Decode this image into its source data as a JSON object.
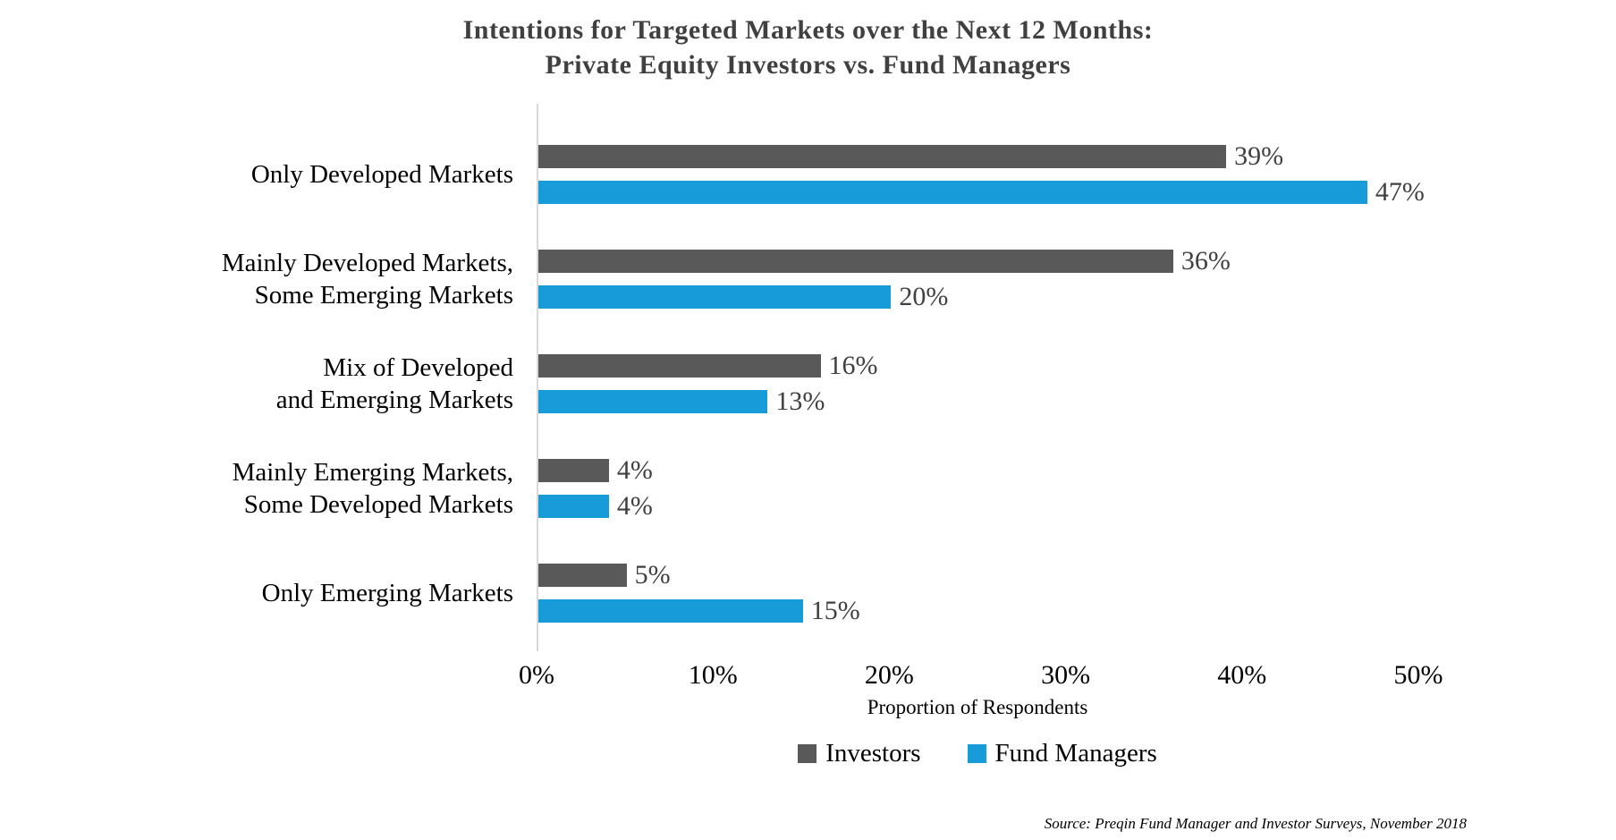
{
  "title": {
    "line1": "Intentions for Targeted Markets over the Next 12 Months:",
    "line2": "Private Equity Investors vs. Fund Managers"
  },
  "chart_data": {
    "type": "bar",
    "orientation": "horizontal",
    "categories": [
      {
        "lines": [
          "Only Developed Markets"
        ]
      },
      {
        "lines": [
          "Mainly Developed Markets,",
          "Some Emerging Markets"
        ]
      },
      {
        "lines": [
          "Mix of Developed",
          "and Emerging Markets"
        ]
      },
      {
        "lines": [
          "Mainly Emerging Markets,",
          "Some Developed Markets"
        ]
      },
      {
        "lines": [
          "Only Emerging Markets"
        ]
      }
    ],
    "series": [
      {
        "name": "Investors",
        "color": "#595959",
        "values": [
          39,
          36,
          16,
          4,
          5
        ]
      },
      {
        "name": "Fund Managers",
        "color": "#189CD9",
        "values": [
          47,
          20,
          13,
          4,
          15
        ]
      }
    ],
    "value_suffix": "%",
    "xlabel": "Proportion of Respondents",
    "xlim": [
      0,
      50
    ],
    "xticks": [
      {
        "value": 0,
        "label": "0%"
      },
      {
        "value": 10,
        "label": "10%"
      },
      {
        "value": 20,
        "label": "20%"
      },
      {
        "value": 30,
        "label": "30%"
      },
      {
        "value": 40,
        "label": "40%"
      },
      {
        "value": 50,
        "label": "50%"
      }
    ],
    "grid": false,
    "legend_position": "bottom",
    "axis_line_color": "#d9d9d9",
    "value_label_color": "#404040"
  },
  "source": "Source: Preqin Fund Manager and Investor Surveys, November 2018"
}
